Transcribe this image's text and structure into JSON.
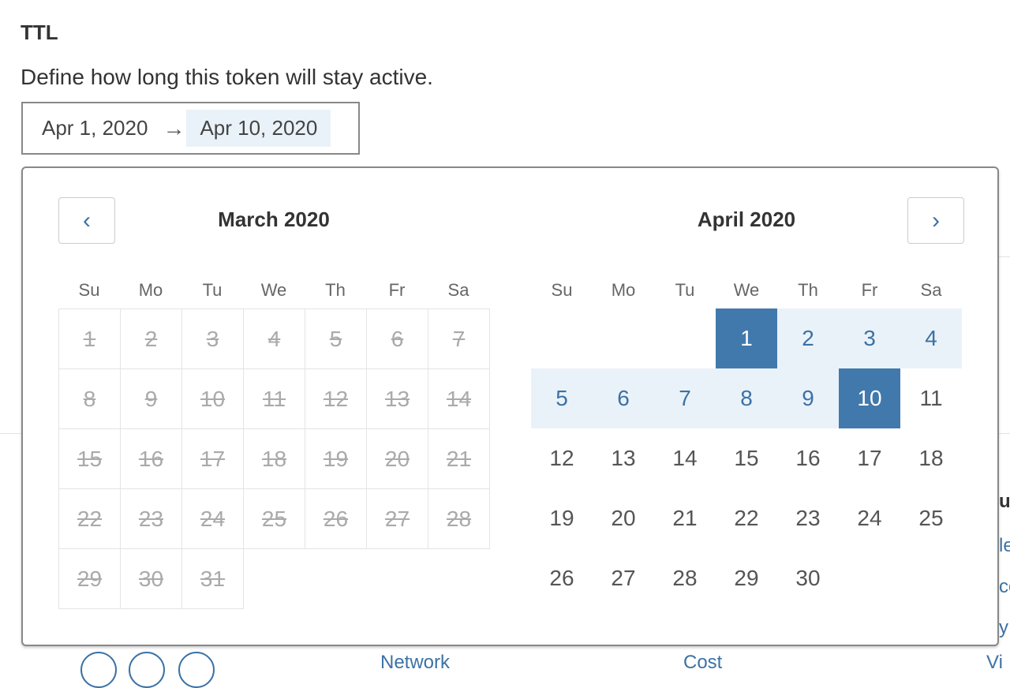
{
  "ttl": {
    "title": "TTL",
    "description": "Define how long this token will stay active.",
    "start": "Apr 1, 2020",
    "end": "Apr 10, 2020",
    "arrow": "→"
  },
  "picker": {
    "prev_icon": "‹",
    "next_icon": "›",
    "weekdays": [
      "Su",
      "Mo",
      "Tu",
      "We",
      "Th",
      "Fr",
      "Sa"
    ],
    "left": {
      "title": "March 2020",
      "first_weekday": 0,
      "days": 31,
      "disabled": "all"
    },
    "right": {
      "title": "April 2020",
      "first_weekday": 3,
      "days": 30,
      "selected": [
        1,
        10
      ],
      "range": [
        1,
        10
      ]
    },
    "colors": {
      "selected": "#4179ac",
      "in_range": "#eaf2f9",
      "accent": "#3b72a6"
    }
  },
  "background_fragments": [
    "u",
    "le",
    "co",
    "y",
    "Network",
    "Cost",
    "Vi"
  ]
}
